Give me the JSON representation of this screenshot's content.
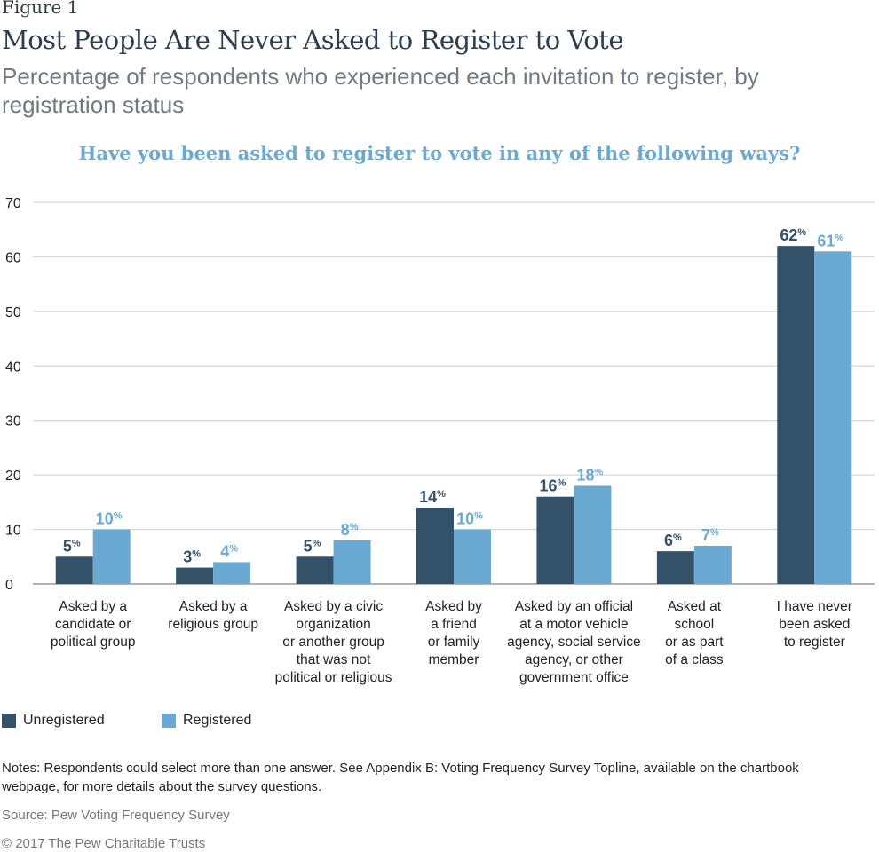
{
  "figure_label": "Figure 1",
  "title": "Most People Are Never Asked to Register to Vote",
  "subtitle": "Percentage of respondents who experienced each invitation to register, by registration status",
  "question": "Have you been asked to register to vote in any of the following ways?",
  "colors": {
    "unregistered": "#34516a",
    "registered": "#6aaad2",
    "grid": "#cfcfcf",
    "axis": "#888888"
  },
  "chart_data": {
    "type": "bar",
    "title": "Have you been asked to register to vote in any of the following ways?",
    "xlabel": "",
    "ylabel": "",
    "ylim": [
      0,
      70
    ],
    "yticks": [
      0,
      10,
      20,
      30,
      40,
      50,
      60,
      70
    ],
    "grid": true,
    "legend_position": "bottom-left",
    "value_suffix": "%",
    "categories": [
      [
        "Asked by a",
        "candidate or",
        "political group"
      ],
      [
        "Asked by a",
        "religious group"
      ],
      [
        "Asked by a civic",
        "organization",
        "or another group",
        "that was not",
        "political or religious"
      ],
      [
        "Asked by",
        "a friend",
        "or family",
        "member"
      ],
      [
        "Asked by an official",
        "at a motor vehicle",
        "agency, social service",
        "agency, or other",
        "government office"
      ],
      [
        "Asked at",
        "school",
        "or as part",
        "of a class"
      ],
      [
        "I have never",
        "been asked",
        "to register"
      ]
    ],
    "series": [
      {
        "name": "Unregistered",
        "values": [
          5,
          3,
          5,
          14,
          16,
          6,
          62
        ]
      },
      {
        "name": "Registered",
        "values": [
          10,
          4,
          8,
          10,
          18,
          7,
          61
        ]
      }
    ]
  },
  "legend": {
    "unregistered_label": "Unregistered",
    "registered_label": "Registered"
  },
  "notes": "Notes: Respondents could select more than one answer. See Appendix B: Voting Frequency Survey Topline, available on the chartbook webpage, for more details about the survey questions.",
  "source": "Source: Pew Voting Frequency Survey",
  "copyright": "© 2017 The Pew Charitable Trusts"
}
